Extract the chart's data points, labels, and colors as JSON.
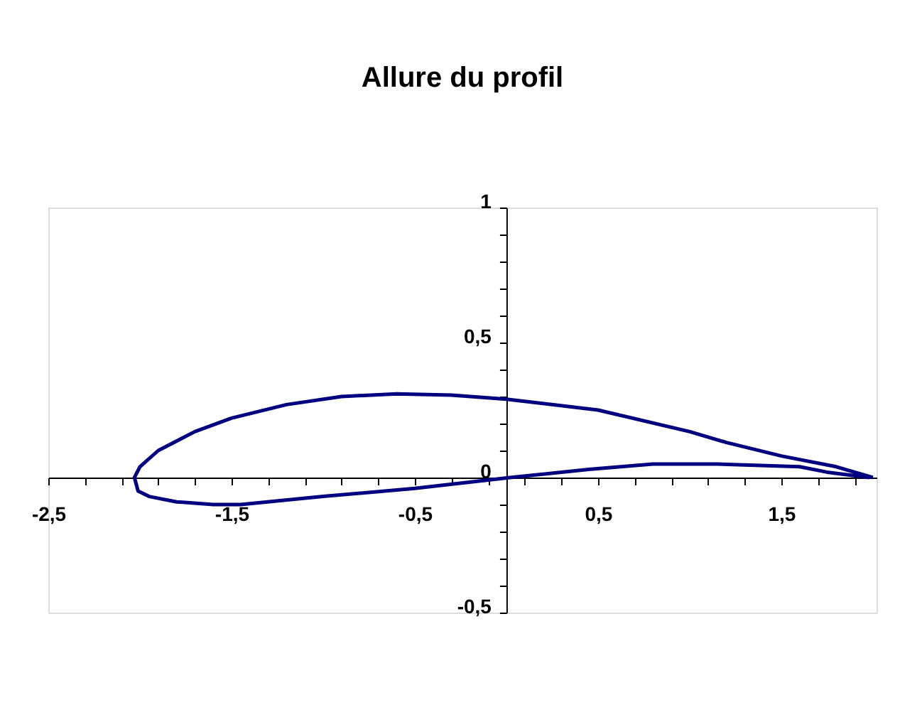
{
  "chart_data": {
    "type": "line",
    "title": "Allure du profil",
    "series": [
      {
        "color": "#000080",
        "x": [
          2.0,
          1.8,
          1.5,
          1.2,
          1.0,
          0.5,
          0.0,
          -0.3,
          -0.6,
          -0.9,
          -1.2,
          -1.5,
          -1.7,
          -1.9,
          -2.0,
          -2.03,
          -2.01,
          -1.95,
          -1.8,
          -1.6,
          -1.45,
          -1.0,
          -0.5,
          0.02,
          0.45,
          0.8,
          1.15,
          1.6,
          1.75,
          1.98
        ],
        "values": [
          0.0,
          0.04,
          0.08,
          0.13,
          0.17,
          0.25,
          0.29,
          0.305,
          0.31,
          0.3,
          0.27,
          0.22,
          0.17,
          0.1,
          0.04,
          0.0,
          -0.05,
          -0.07,
          -0.09,
          -0.1,
          -0.1,
          -0.07,
          -0.04,
          0.0,
          0.03,
          0.05,
          0.05,
          0.04,
          0.02,
          0.0
        ]
      }
    ],
    "xlim": [
      -2.5,
      2.02
    ],
    "ylim": [
      -0.5,
      1.0
    ],
    "xticks": [
      {
        "value": -2.5,
        "label": "-2,5"
      },
      {
        "value": -2.3,
        "label": null
      },
      {
        "value": -2.1,
        "label": null
      },
      {
        "value": -1.9,
        "label": null
      },
      {
        "value": -1.7,
        "label": null
      },
      {
        "value": -1.5,
        "label": "-1,5"
      },
      {
        "value": -1.3,
        "label": null
      },
      {
        "value": -1.1,
        "label": null
      },
      {
        "value": -0.9,
        "label": null
      },
      {
        "value": -0.7,
        "label": null
      },
      {
        "value": -0.5,
        "label": "-0,5"
      },
      {
        "value": -0.3,
        "label": null
      },
      {
        "value": -0.1,
        "label": null
      },
      {
        "value": 0.1,
        "label": null
      },
      {
        "value": 0.3,
        "label": null
      },
      {
        "value": 0.5,
        "label": "0,5"
      },
      {
        "value": 0.7,
        "label": null
      },
      {
        "value": 0.9,
        "label": null
      },
      {
        "value": 1.1,
        "label": null
      },
      {
        "value": 1.3,
        "label": null
      },
      {
        "value": 1.5,
        "label": "1,5"
      },
      {
        "value": 1.7,
        "label": null
      },
      {
        "value": 1.9,
        "label": null
      }
    ],
    "yticks": [
      {
        "value": -0.5,
        "label": "-0,5"
      },
      {
        "value": -0.4,
        "label": null
      },
      {
        "value": -0.3,
        "label": null
      },
      {
        "value": -0.2,
        "label": null
      },
      {
        "value": -0.1,
        "label": null
      },
      0,
      {
        "value": 0.1,
        "label": null
      },
      {
        "value": 0.2,
        "label": null
      },
      {
        "value": 0.3,
        "label": null
      },
      {
        "value": 0.4,
        "label": null
      },
      {
        "value": 0.5,
        "label": "0,5"
      },
      {
        "value": 0.6,
        "label": null
      },
      {
        "value": 0.7,
        "label": null
      },
      {
        "value": 0.8,
        "label": null
      },
      {
        "value": 0.9,
        "label": null
      },
      1
    ],
    "grid": false,
    "legend": false,
    "marker": "none",
    "line_style": "solid"
  }
}
